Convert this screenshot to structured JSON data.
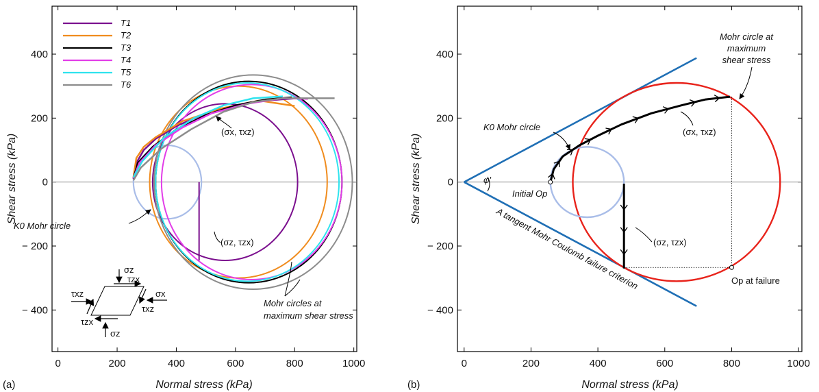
{
  "chart_data": [
    {
      "panel_tag": "(a)",
      "type": "line",
      "xlabel": "Normal stress (kPa)",
      "ylabel": "Shear stress (kPa)",
      "xlim": [
        -20,
        1010
      ],
      "ylim": [
        -530,
        550
      ],
      "xticks": [
        0,
        200,
        400,
        600,
        800,
        1000
      ],
      "yticks": [
        -400,
        -200,
        0,
        200,
        400
      ],
      "xtick_labels": [
        "0",
        "200",
        "400",
        "600",
        "800",
        "1000"
      ],
      "ytick_labels": [
        "− 400",
        "− 200",
        "0",
        "200",
        "400"
      ],
      "grid": false,
      "legend_position": "top-left",
      "colors": {
        "T1": "#7b0f8e",
        "T2": "#f08c1e",
        "T3": "#000000",
        "T4": "#e23ee8",
        "T5": "#2fe3ee",
        "T6": "#8c8c8c",
        "k0": "#a9bde8",
        "zero_line": "#888888"
      },
      "series": [
        {
          "name": "T1",
          "stress_path": [
            [
              255,
              10
            ],
            [
              265,
              60
            ],
            [
              290,
              100
            ],
            [
              330,
              135
            ],
            [
              400,
              175
            ],
            [
              500,
              215
            ],
            [
              600,
              240
            ],
            [
              700,
              255
            ],
            [
              810,
              262
            ]
          ],
          "mohr_circle": {
            "center": 565,
            "radius": 245
          }
        },
        {
          "name": "T2",
          "stress_path": [
            [
              255,
              15
            ],
            [
              265,
              75
            ],
            [
              290,
              110
            ],
            [
              330,
              140
            ],
            [
              420,
              190
            ],
            [
              550,
              230
            ],
            [
              680,
              255
            ],
            [
              800,
              238
            ]
          ],
          "mohr_circle": {
            "center": 610,
            "radius": 300
          }
        },
        {
          "name": "T3",
          "stress_path": [
            [
              255,
              12
            ],
            [
              270,
              60
            ],
            [
              320,
              110
            ],
            [
              400,
              165
            ],
            [
              500,
              210
            ],
            [
              600,
              240
            ],
            [
              700,
              258
            ],
            [
              790,
              265
            ]
          ],
          "mohr_circle": {
            "center": 645,
            "radius": 315
          }
        },
        {
          "name": "T4",
          "stress_path": [
            [
              255,
              12
            ],
            [
              275,
              60
            ],
            [
              330,
              115
            ],
            [
              420,
              170
            ],
            [
              520,
              215
            ],
            [
              640,
              245
            ],
            [
              760,
              262
            ],
            [
              845,
              260
            ]
          ],
          "mohr_circle": {
            "center": 655,
            "radius": 305
          }
        },
        {
          "name": "T5",
          "stress_path": [
            [
              255,
              15
            ],
            [
              285,
              65
            ],
            [
              360,
              140
            ],
            [
              460,
              200
            ],
            [
              560,
              240
            ],
            [
              660,
              262
            ],
            [
              760,
              268
            ]
          ],
          "mohr_circle": {
            "center": 640,
            "radius": 310
          }
        },
        {
          "name": "T6",
          "stress_path": [
            [
              255,
              5
            ],
            [
              280,
              45
            ],
            [
              350,
              105
            ],
            [
              450,
              165
            ],
            [
              560,
              220
            ],
            [
              660,
              250
            ],
            [
              760,
              262
            ],
            [
              935,
              262
            ]
          ],
          "mohr_circle": {
            "center": 660,
            "radius": 335
          }
        }
      ],
      "k0_circle": {
        "center": 370,
        "radius": 115
      },
      "z_path": [
        [
          477,
          0
        ],
        [
          477,
          -245
        ]
      ],
      "annotations": {
        "sxy": "(σx, τxz)",
        "szx": "(σz, τzx)",
        "k0": "K0 Mohr circle",
        "max_line1": "Mohr circles at",
        "max_line2": "maximum shear stress"
      },
      "element_labels": {
        "sigma_z": "σz",
        "sigma_x": "σx",
        "tau_zx": "τzx",
        "tau_xz": "τxz"
      }
    },
    {
      "panel_tag": "(b)",
      "type": "line",
      "xlabel": "Normal stress (kPa)",
      "ylabel": "Shear stress (kPa)",
      "xlim": [
        -20,
        1010
      ],
      "ylim": [
        -530,
        550
      ],
      "xticks": [
        0,
        200,
        400,
        600,
        800,
        1000
      ],
      "yticks": [
        -400,
        -200,
        0,
        200,
        400
      ],
      "xtick_labels": [
        "0",
        "200",
        "400",
        "600",
        "800",
        "1000"
      ],
      "ytick_labels": [
        "− 400",
        "− 200",
        "0",
        "200",
        "400"
      ],
      "grid": false,
      "colors": {
        "envelope": "#1f6fb5",
        "failure_circle": "#e8231b",
        "k0": "#a9bde8",
        "path": "#000000",
        "zero_line": "#888888"
      },
      "envelope": {
        "x_end": 695,
        "y_end": 388
      },
      "failure_circle": {
        "center": 635,
        "radius": 310
      },
      "k0_circle": {
        "center": 368,
        "radius": 110
      },
      "x_path": [
        [
          258,
          0
        ],
        [
          268,
          40
        ],
        [
          295,
          80
        ],
        [
          345,
          115
        ],
        [
          400,
          145
        ],
        [
          470,
          180
        ],
        [
          560,
          215
        ],
        [
          650,
          240
        ],
        [
          720,
          258
        ],
        [
          795,
          267
        ]
      ],
      "z_path": [
        [
          478,
          -5
        ],
        [
          478,
          -270
        ]
      ],
      "failure_point": [
        800,
        -267
      ],
      "initial_point": [
        258,
        0
      ],
      "annotations": {
        "top_line1": "Mohr circle at",
        "top_line2": "maximum",
        "top_line3": "shear stress",
        "k0": "K0 Mohr circle",
        "sxy": "(σx, τxz)",
        "szx": "(σz, τzx)",
        "initial": "Initial Op",
        "at_failure": "Op at failure",
        "phi": "φ'",
        "criterion": "A tangent Mohr Coulomb failure criterion"
      }
    }
  ]
}
